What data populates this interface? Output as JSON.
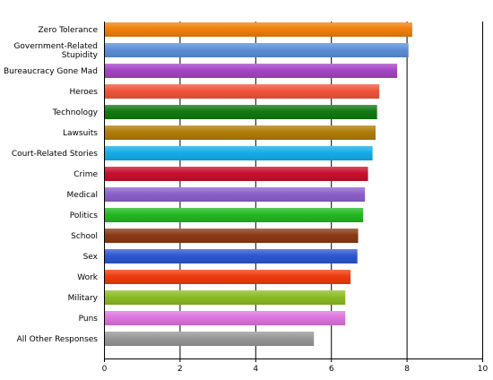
{
  "chart_data": {
    "type": "bar",
    "orientation": "horizontal",
    "title": "",
    "xlabel": "",
    "ylabel": "",
    "xlim": [
      0,
      10
    ],
    "xticks": [
      "0",
      "2",
      "4",
      "6",
      "8",
      "10"
    ],
    "grid": "vertical gridlines at each tick",
    "legend": "none",
    "categories": [
      "Zero Tolerance",
      "Government-Related Stupidity",
      "Bureaucracy Gone Mad",
      "Heroes",
      "Technology",
      "Lawsuits",
      "Court-Related Stories",
      "Crime",
      "Medical",
      "Politics",
      "School",
      "Sex",
      "Work",
      "Military",
      "Puns",
      "All Other Responses"
    ],
    "category_lines": [
      [
        "Zero Tolerance"
      ],
      [
        "Government-Related",
        "Stupidity"
      ],
      [
        "Bureaucracy Gone Mad"
      ],
      [
        "Heroes"
      ],
      [
        "Technology"
      ],
      [
        "Lawsuits"
      ],
      [
        "Court-Related Stories"
      ],
      [
        "Crime"
      ],
      [
        "Medical"
      ],
      [
        "Politics"
      ],
      [
        "School"
      ],
      [
        "Sex"
      ],
      [
        "Work"
      ],
      [
        "Military"
      ],
      [
        "Puns"
      ],
      [
        "All Other Responses"
      ]
    ],
    "values": [
      8.15,
      8.05,
      7.75,
      7.28,
      7.22,
      7.18,
      7.1,
      6.98,
      6.9,
      6.85,
      6.72,
      6.7,
      6.52,
      6.38,
      6.38,
      5.55
    ],
    "colors": [
      "#f07f0a",
      "#5b8fd8",
      "#a545c5",
      "#f0553a",
      "#127a12",
      "#b07d08",
      "#14aeea",
      "#c8102e",
      "#8d61cc",
      "#22b822",
      "#8b3a14",
      "#2d57d1",
      "#ef3b0c",
      "#8cbc24",
      "#de74de",
      "#979797"
    ]
  }
}
